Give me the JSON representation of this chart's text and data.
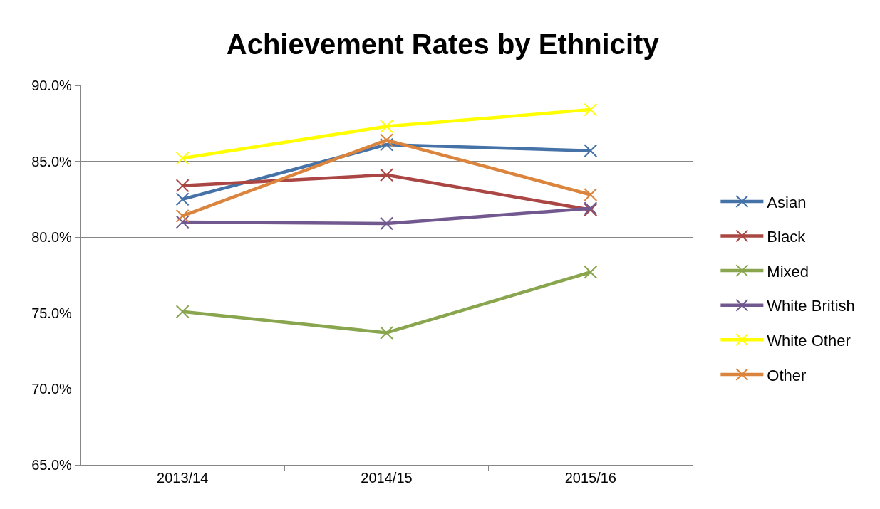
{
  "chart_data": {
    "type": "line",
    "title": "Achievement Rates by Ethnicity",
    "categories": [
      "2013/14",
      "2014/15",
      "2015/16"
    ],
    "series": [
      {
        "name": "Asian",
        "color": "#4572a7",
        "values": [
          82.5,
          86.1,
          85.7
        ]
      },
      {
        "name": "Black",
        "color": "#aa4643",
        "values": [
          83.4,
          84.1,
          81.8
        ]
      },
      {
        "name": "Mixed",
        "color": "#89a54e",
        "values": [
          75.1,
          73.7,
          77.7
        ]
      },
      {
        "name": "White British",
        "color": "#71588f",
        "values": [
          81.0,
          80.9,
          81.9
        ]
      },
      {
        "name": "White Other",
        "color": "#ffff00",
        "values": [
          85.2,
          87.3,
          88.4
        ]
      },
      {
        "name": "Other",
        "color": "#db843d",
        "values": [
          81.4,
          86.4,
          82.8
        ]
      }
    ],
    "ylim": [
      65,
      90
    ],
    "yticks": [
      {
        "value": 65,
        "label": "65.0%"
      },
      {
        "value": 70,
        "label": "70.0%"
      },
      {
        "value": 75,
        "label": "75.0%"
      },
      {
        "value": 80,
        "label": "80.0%"
      },
      {
        "value": 85,
        "label": "85.0%"
      },
      {
        "value": 90,
        "label": "90.0%"
      }
    ],
    "grid": "y",
    "legend": "right",
    "marker": "cross",
    "line_style": "solid"
  }
}
